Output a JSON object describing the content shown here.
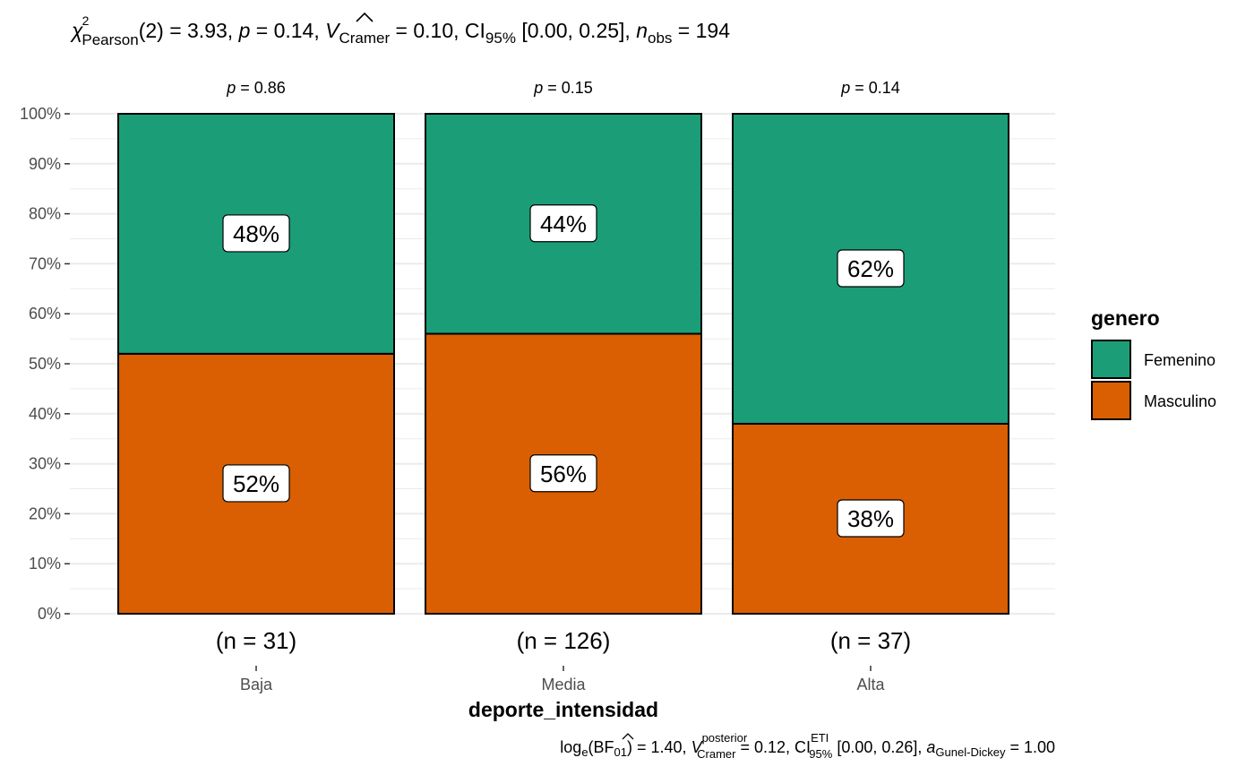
{
  "colors": {
    "Femenino": "#1b9e77",
    "Masculino": "#d95f02",
    "grid": "#ebebeb",
    "axis_text": "#4d4d4d"
  },
  "subtitle": {
    "chi": "χ",
    "chi_sup": "2",
    "chi_sub": "Pearson",
    "stat": "(2) = 3.93, ",
    "p_label": "p",
    "p_value": " = 0.14, ",
    "v_label": "V",
    "v_sub": "Cramer",
    "v_value": " = 0.10, CI",
    "ci_sub": "95%",
    "ci_value": " [0.00, 0.25], ",
    "n_label": "n",
    "n_sub": "obs",
    "n_value": " = 194"
  },
  "caption": {
    "log": "log",
    "log_sub": "e",
    "bf": "(BF",
    "bf_sub": "01",
    "bf_value": ") = 1.40, ",
    "v_label": "V",
    "v_sup": "posterior",
    "v_sub": "Cramer",
    "v_value": " = 0.12, CI",
    "ci_sup": "ETI",
    "ci_sub": "95%",
    "ci_value": " [0.00, 0.26], ",
    "a_label": "a",
    "a_sub": "Gunel-Dickey",
    "a_value": " = 1.00"
  },
  "chart_data": {
    "type": "bar",
    "stacked": true,
    "categories": [
      "Baja",
      "Media",
      "Alta"
    ],
    "xlabel": "deporte_intensidad",
    "ylabel": "",
    "ylim": [
      0,
      100
    ],
    "y_ticks": [
      "0%",
      "10%",
      "20%",
      "30%",
      "40%",
      "50%",
      "60%",
      "70%",
      "80%",
      "90%",
      "100%"
    ],
    "series": [
      {
        "name": "Masculino",
        "values": [
          52,
          56,
          38
        ],
        "labels": [
          "52%",
          "56%",
          "38%"
        ]
      },
      {
        "name": "Femenino",
        "values": [
          48,
          44,
          62
        ],
        "labels": [
          "48%",
          "44%",
          "62%"
        ]
      }
    ],
    "counts": [
      "(n = 31)",
      "(n = 126)",
      "(n = 37)"
    ],
    "p_labels": [
      "p",
      "p",
      "p"
    ],
    "p_values": [
      " = 0.86",
      " = 0.15",
      " = 0.14"
    ],
    "legend": {
      "title": "genero",
      "position": "right",
      "items": [
        "Femenino",
        "Masculino"
      ]
    },
    "grid": true
  }
}
